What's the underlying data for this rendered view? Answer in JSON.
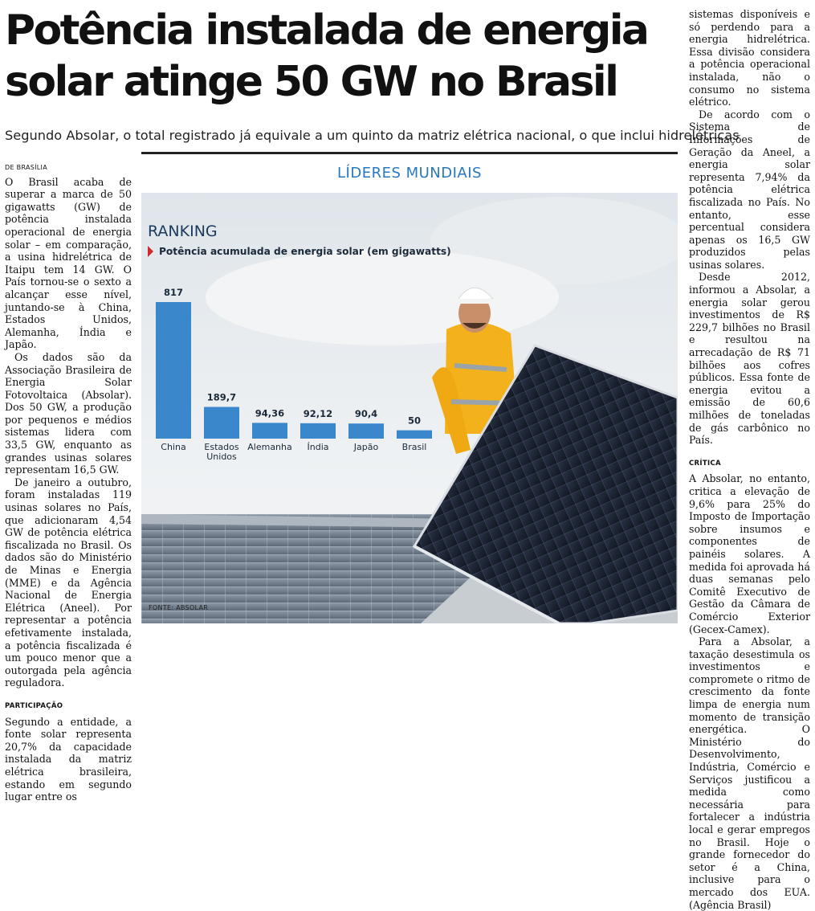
{
  "article": {
    "headline_line1": "Potência instalada de energia",
    "headline_line2": "solar atinge 50 GW no Brasil",
    "subheadline": "Segundo Absolar, o total registrado já equivale a um quinto da matriz elétrica nacional, o que inclui hidrelétricas",
    "dateline": "DE BRASÍLIA",
    "left_column": {
      "p1": "O Brasil acaba de superar a marca de 50 gigawatts (GW) de potência instalada operacional de energia solar – em comparação, a usina hidrelétrica de Itaipu tem 14 GW. O País tornou-se o sexto a alcançar esse nível, juntando-se à China, Estados Unidos, Alemanha, Índia e Japão.",
      "p2": "Os dados são da Associação Brasileira de Energia Solar Fotovoltaica (Absolar). Dos 50 GW, a produção por pequenos e médios sistemas lidera com 33,5 GW, enquanto as grandes usinas solares representam 16,5 GW.",
      "p3": "De janeiro a outubro, foram instaladas 119 usinas solares no País, que adicionaram 4,54 GW de potência elétrica fiscalizada no Brasil. Os dados são do Ministério de Minas e Energia (MME) e da Agência Nacional de Energia Elétrica (Aneel). Por representar a potência efetivamente instalada, a potência fiscalizada é um pouco menor que a outorgada pela agência reguladora.",
      "kicker": "PARTICIPAÇÃO",
      "p4": "Segundo a entidade, a fonte solar representa 20,7% da capacidade instalada da matriz elétrica brasileira, estando em segundo lugar entre os"
    },
    "right_column": {
      "p1": "sistemas disponíveis e só perdendo para a energia hidrelétrica. Essa divisão considera a potência operacional instalada, não o consumo no sistema elétrico.",
      "p2": "De acordo com o Sistema de Informações de Geração da Aneel, a energia solar representa 7,94% da potência elétrica fiscalizada no País. No entanto, esse percentual considera apenas os 16,5 GW produzidos pelas usinas solares.",
      "p3": "Desde 2012, informou a Absolar, a energia solar gerou investimentos de R$ 229,7 bilhões no Brasil e resultou na arrecadação de R$ 71 bilhões aos cofres públicos. Essa fonte de energia evitou a emissão de 60,6 milhões de toneladas de gás carbônico no País.",
      "kicker": "CRÍTICA",
      "p4": "A Absolar, no entanto, critica a elevação de 9,6% para 25% do Imposto de Importação sobre insumos e componentes de painéis solares. A medida foi aprovada há duas semanas pelo Comitê Executivo de Gestão da Câmara de Comércio Exterior (Gecex-Camex).",
      "p5": "Para a Absolar, a taxação desestimula os investimentos e compromete o ritmo de crescimento da fonte limpa de energia num momento de transição energética. O Ministério do Desenvolvimento, Indústria, Comércio e Serviços justificou a medida como necessária para fortalecer a indústria local e gerar empregos no Brasil. Hoje o grande fornecedor do setor é a China, inclusive para o mercado dos EUA. (Agência Brasil)"
    }
  },
  "graphic": {
    "title": "LÍDERES MUNDIAIS",
    "ranking_label": "RANKING",
    "source": "FONTE: ABSOLAR",
    "accent_color": "#2778c2",
    "bar_color": "#3b87cc",
    "marker_color": "#d02a2a"
  },
  "chart_data": {
    "type": "bar",
    "title": "Potência acumulada de energia solar (em gigawatts)",
    "categories": [
      "China",
      "Estados Unidos",
      "Alemanha",
      "Índia",
      "Japão",
      "Brasil"
    ],
    "values": [
      817,
      189.7,
      94.36,
      92.12,
      90.4,
      50
    ],
    "value_labels": [
      "817",
      "189,7",
      "94,36",
      "92,12",
      "90,4",
      "50"
    ],
    "xlabel": "",
    "ylabel": "",
    "grid": false,
    "legend": "none"
  }
}
